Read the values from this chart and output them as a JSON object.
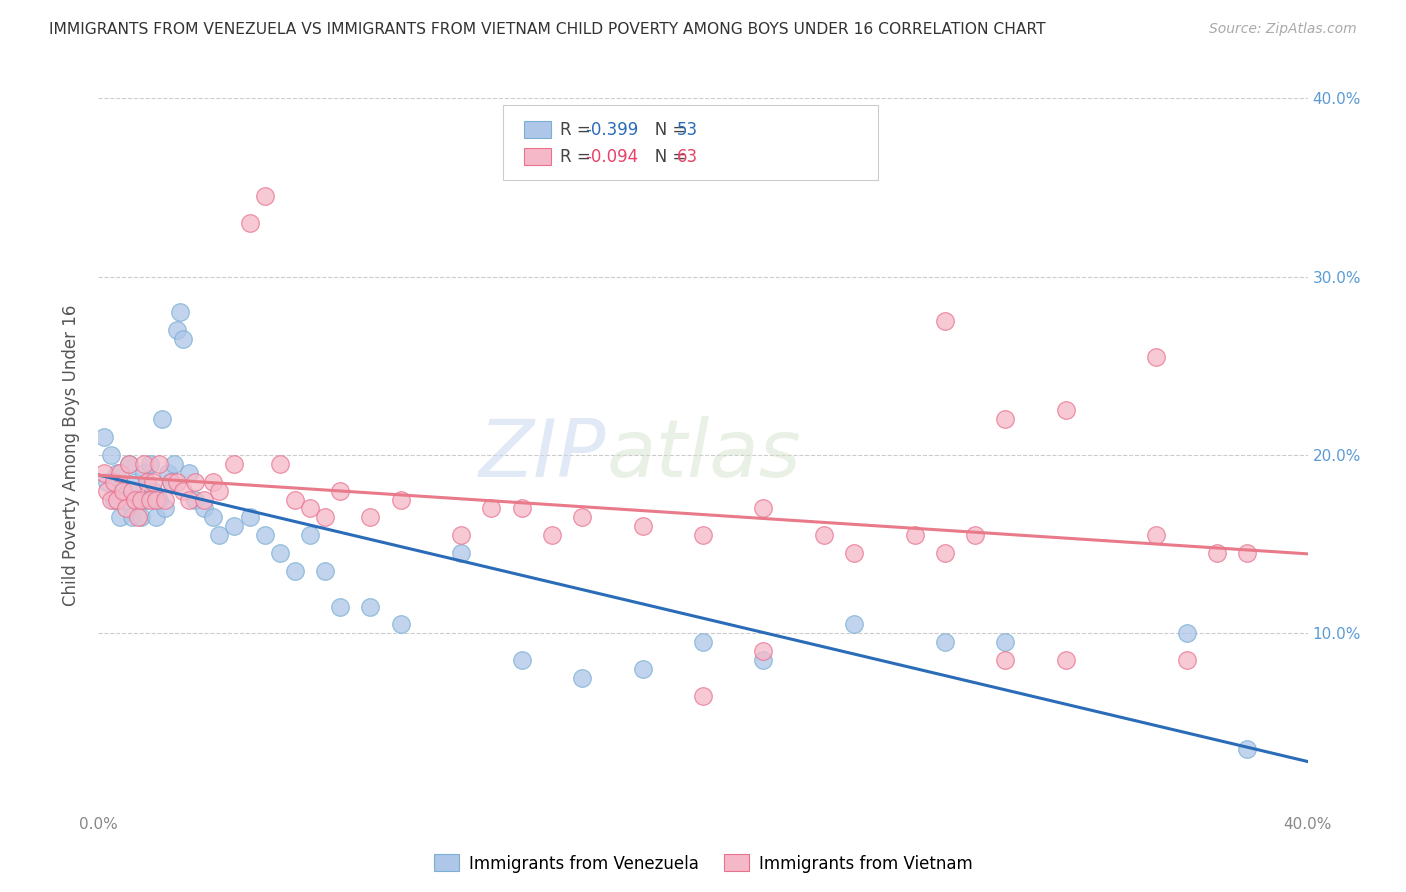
{
  "title": "IMMIGRANTS FROM VENEZUELA VS IMMIGRANTS FROM VIETNAM CHILD POVERTY AMONG BOYS UNDER 16 CORRELATION CHART",
  "source": "Source: ZipAtlas.com",
  "ylabel": "Child Poverty Among Boys Under 16",
  "xlim": [
    0.0,
    0.4
  ],
  "ylim": [
    0.0,
    0.4
  ],
  "xticks": [
    0.0,
    0.1,
    0.2,
    0.3,
    0.4
  ],
  "yticks": [
    0.0,
    0.1,
    0.2,
    0.3,
    0.4
  ],
  "xticklabels": [
    "0.0%",
    "",
    "",
    "",
    "40.0%"
  ],
  "yticklabels_right": [
    "",
    "10.0%",
    "20.0%",
    "30.0%",
    "40.0%"
  ],
  "series1_color": "#aec6e8",
  "series1_edge": "#7bafd4",
  "series2_color": "#f5b8c8",
  "series2_edge": "#e8728e",
  "trendline1_color": "#2b6cb8",
  "trendline2_color": "#e87a8a",
  "watermark_zip": "ZIP",
  "watermark_atlas": "atlas",
  "venezuela_x": [
    0.002,
    0.003,
    0.004,
    0.005,
    0.006,
    0.007,
    0.008,
    0.009,
    0.01,
    0.011,
    0.012,
    0.013,
    0.014,
    0.015,
    0.016,
    0.017,
    0.018,
    0.019,
    0.02,
    0.021,
    0.022,
    0.023,
    0.024,
    0.025,
    0.026,
    0.027,
    0.028,
    0.03,
    0.032,
    0.035,
    0.038,
    0.04,
    0.045,
    0.05,
    0.055,
    0.06,
    0.065,
    0.07,
    0.075,
    0.08,
    0.09,
    0.1,
    0.12,
    0.14,
    0.16,
    0.18,
    0.2,
    0.22,
    0.25,
    0.28,
    0.3,
    0.36,
    0.38
  ],
  "venezuela_y": [
    0.21,
    0.185,
    0.2,
    0.175,
    0.19,
    0.165,
    0.18,
    0.175,
    0.195,
    0.165,
    0.185,
    0.175,
    0.165,
    0.19,
    0.175,
    0.195,
    0.18,
    0.165,
    0.175,
    0.22,
    0.17,
    0.19,
    0.185,
    0.195,
    0.27,
    0.28,
    0.265,
    0.19,
    0.175,
    0.17,
    0.165,
    0.155,
    0.16,
    0.165,
    0.155,
    0.145,
    0.135,
    0.155,
    0.135,
    0.115,
    0.115,
    0.105,
    0.145,
    0.085,
    0.075,
    0.08,
    0.095,
    0.085,
    0.105,
    0.095,
    0.095,
    0.1,
    0.035
  ],
  "vietnam_x": [
    0.002,
    0.003,
    0.004,
    0.005,
    0.006,
    0.007,
    0.008,
    0.009,
    0.01,
    0.011,
    0.012,
    0.013,
    0.014,
    0.015,
    0.016,
    0.017,
    0.018,
    0.019,
    0.02,
    0.022,
    0.024,
    0.026,
    0.028,
    0.03,
    0.032,
    0.035,
    0.038,
    0.04,
    0.045,
    0.05,
    0.055,
    0.06,
    0.065,
    0.07,
    0.075,
    0.08,
    0.09,
    0.1,
    0.12,
    0.13,
    0.14,
    0.15,
    0.16,
    0.18,
    0.2,
    0.22,
    0.24,
    0.25,
    0.27,
    0.28,
    0.29,
    0.3,
    0.32,
    0.35,
    0.36,
    0.37,
    0.38,
    0.28,
    0.3,
    0.32,
    0.35,
    0.2,
    0.22
  ],
  "vietnam_y": [
    0.19,
    0.18,
    0.175,
    0.185,
    0.175,
    0.19,
    0.18,
    0.17,
    0.195,
    0.18,
    0.175,
    0.165,
    0.175,
    0.195,
    0.185,
    0.175,
    0.185,
    0.175,
    0.195,
    0.175,
    0.185,
    0.185,
    0.18,
    0.175,
    0.185,
    0.175,
    0.185,
    0.18,
    0.195,
    0.33,
    0.345,
    0.195,
    0.175,
    0.17,
    0.165,
    0.18,
    0.165,
    0.175,
    0.155,
    0.17,
    0.17,
    0.155,
    0.165,
    0.16,
    0.155,
    0.17,
    0.155,
    0.145,
    0.155,
    0.145,
    0.155,
    0.085,
    0.085,
    0.155,
    0.085,
    0.145,
    0.145,
    0.275,
    0.22,
    0.225,
    0.255,
    0.065,
    0.09
  ]
}
